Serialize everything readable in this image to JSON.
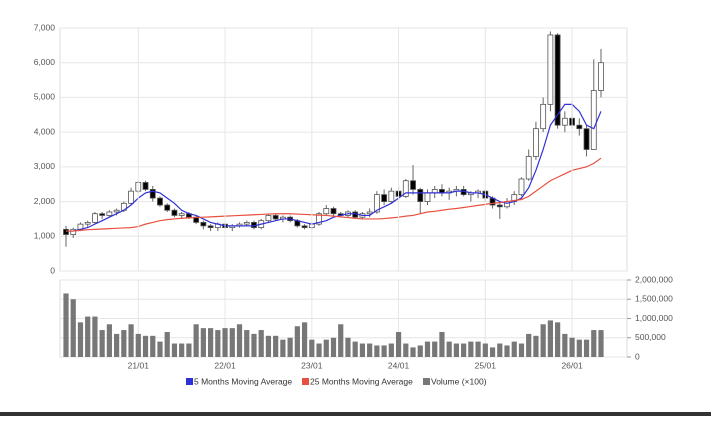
{
  "chart_data": [
    {
      "type": "candlestick",
      "open": [
        1200,
        1050,
        1200,
        1350,
        1400,
        1650,
        1600,
        1700,
        1750,
        1950,
        2300,
        2550,
        2350,
        2100,
        1900,
        1750,
        1600,
        1650,
        1550,
        1400,
        1300,
        1250,
        1350,
        1250,
        1300,
        1350,
        1400,
        1250,
        1450,
        1600,
        1500,
        1550,
        1450,
        1300,
        1250,
        1350,
        1650,
        1800,
        1650,
        1600,
        1700,
        1550,
        1650,
        1700,
        2200,
        2000,
        2300,
        2150,
        2600,
        2350,
        2000,
        2250,
        2350,
        2250,
        2300,
        2350,
        2200,
        2250,
        2300,
        2100,
        1900,
        1850,
        2000,
        2200,
        2650,
        3300,
        4100,
        4800,
        6800,
        4200,
        4400,
        4200,
        4100,
        3500,
        5200
      ],
      "high": [
        1300,
        1250,
        1400,
        1450,
        1700,
        1700,
        1750,
        1800,
        2000,
        2400,
        2600,
        2600,
        2450,
        2150,
        1950,
        1800,
        1700,
        1700,
        1600,
        1450,
        1350,
        1400,
        1400,
        1350,
        1400,
        1450,
        1450,
        1500,
        1650,
        1650,
        1600,
        1600,
        1500,
        1350,
        1400,
        1700,
        1900,
        1850,
        1700,
        1750,
        1750,
        1700,
        1800,
        2300,
        2350,
        2400,
        2450,
        2650,
        3050,
        2400,
        2350,
        2450,
        2500,
        2400,
        2450,
        2450,
        2300,
        2350,
        2350,
        2150,
        2000,
        2100,
        2300,
        2700,
        3500,
        4300,
        5000,
        6900,
        6850,
        4600,
        4900,
        4400,
        4200,
        6100,
        6400
      ],
      "low": [
        700,
        950,
        1150,
        1250,
        1350,
        1500,
        1550,
        1600,
        1700,
        1900,
        2250,
        2300,
        2000,
        1850,
        1700,
        1550,
        1500,
        1500,
        1350,
        1200,
        1150,
        1150,
        1200,
        1150,
        1250,
        1300,
        1200,
        1200,
        1400,
        1450,
        1400,
        1400,
        1250,
        1200,
        1200,
        1300,
        1600,
        1600,
        1550,
        1550,
        1500,
        1500,
        1550,
        1650,
        1900,
        1950,
        2050,
        2100,
        2200,
        1650,
        1900,
        2100,
        2150,
        2050,
        2150,
        2150,
        2000,
        2100,
        2000,
        1800,
        1500,
        1800,
        1900,
        2150,
        2600,
        3200,
        4000,
        4600,
        4100,
        4000,
        4100,
        3900,
        3300,
        3500,
        5000
      ],
      "close": [
        1050,
        1200,
        1350,
        1400,
        1650,
        1600,
        1700,
        1750,
        1950,
        2300,
        2550,
        2350,
        2100,
        1900,
        1750,
        1600,
        1650,
        1550,
        1400,
        1300,
        1250,
        1350,
        1250,
        1300,
        1350,
        1400,
        1250,
        1450,
        1600,
        1500,
        1550,
        1450,
        1300,
        1250,
        1350,
        1650,
        1800,
        1650,
        1600,
        1700,
        1550,
        1650,
        1700,
        2200,
        2000,
        2300,
        2150,
        2600,
        2350,
        2000,
        2250,
        2350,
        2250,
        2300,
        2350,
        2200,
        2250,
        2300,
        2100,
        1900,
        1850,
        2000,
        2200,
        2650,
        3300,
        4100,
        4800,
        6800,
        4200,
        4400,
        4200,
        4100,
        3500,
        5200,
        6000
      ],
      "up_color": "#ffffff",
      "down_color": "#000000",
      "series": [
        {
          "name": "5 Months Moving Average",
          "color": "#3030d8",
          "values": [
            1150,
            1150,
            1200,
            1250,
            1350,
            1450,
            1550,
            1650,
            1750,
            1900,
            2100,
            2250,
            2300,
            2250,
            2100,
            1950,
            1750,
            1650,
            1600,
            1500,
            1400,
            1350,
            1300,
            1300,
            1300,
            1300,
            1300,
            1350,
            1400,
            1450,
            1500,
            1500,
            1450,
            1400,
            1350,
            1400,
            1450,
            1550,
            1600,
            1650,
            1650,
            1600,
            1600,
            1750,
            1850,
            1950,
            2100,
            2250,
            2250,
            2250,
            2250,
            2250,
            2250,
            2250,
            2300,
            2300,
            2250,
            2250,
            2200,
            2100,
            2000,
            1950,
            2000,
            2100,
            2400,
            2900,
            3500,
            4200,
            4500,
            4800,
            4800,
            4600,
            4200,
            4100,
            4600
          ]
        },
        {
          "name": "25 Months Moving Average",
          "color": "#e8503f",
          "values": [
            1150,
            1150,
            1170,
            1190,
            1200,
            1210,
            1220,
            1230,
            1240,
            1250,
            1280,
            1350,
            1400,
            1450,
            1480,
            1500,
            1520,
            1530,
            1540,
            1550,
            1560,
            1570,
            1580,
            1590,
            1600,
            1610,
            1620,
            1630,
            1640,
            1650,
            1650,
            1650,
            1640,
            1630,
            1620,
            1610,
            1600,
            1580,
            1560,
            1540,
            1520,
            1500,
            1500,
            1500,
            1510,
            1530,
            1550,
            1580,
            1600,
            1650,
            1700,
            1720,
            1750,
            1780,
            1800,
            1830,
            1860,
            1890,
            1920,
            1950,
            1970,
            2000,
            2030,
            2060,
            2150,
            2300,
            2450,
            2600,
            2700,
            2800,
            2900,
            2950,
            3000,
            3100,
            3250
          ]
        }
      ],
      "ylim": [
        0,
        7000
      ],
      "yticks": [
        0,
        {
          "value": 1000,
          "label": "1,000"
        },
        {
          "value": 2000,
          "label": "2,000"
        },
        {
          "value": 3000,
          "label": "3,000"
        },
        {
          "value": 4000,
          "label": "4,000"
        },
        {
          "value": 5000,
          "label": "5,000"
        },
        {
          "value": 6000,
          "label": "6,000"
        },
        {
          "value": 7000,
          "label": "7,000"
        }
      ],
      "grid": true
    },
    {
      "type": "bar",
      "categories": [
        null,
        null,
        null,
        null,
        null,
        null,
        null,
        null,
        null,
        null,
        "21/01",
        null,
        null,
        null,
        null,
        null,
        null,
        null,
        null,
        null,
        null,
        null,
        "22/01",
        null,
        null,
        null,
        null,
        null,
        null,
        null,
        null,
        null,
        null,
        null,
        "23/01",
        null,
        null,
        null,
        null,
        null,
        null,
        null,
        null,
        null,
        null,
        null,
        "24/01",
        null,
        null,
        null,
        null,
        null,
        null,
        null,
        null,
        null,
        null,
        null,
        "25/01",
        null,
        null,
        null,
        null,
        null,
        null,
        null,
        null,
        null,
        null,
        null,
        "26/01",
        null,
        null,
        null,
        null
      ],
      "series": [
        {
          "name": "Volume (×100)",
          "color": "#777777",
          "values": [
            1650000,
            1500000,
            900000,
            1050000,
            1050000,
            700000,
            850000,
            600000,
            700000,
            850000,
            600000,
            550000,
            550000,
            400000,
            650000,
            350000,
            350000,
            350000,
            850000,
            750000,
            750000,
            700000,
            750000,
            750000,
            850000,
            700000,
            600000,
            700000,
            550000,
            550000,
            450000,
            500000,
            800000,
            900000,
            450000,
            350000,
            450000,
            500000,
            850000,
            500000,
            400000,
            350000,
            350000,
            300000,
            300000,
            350000,
            650000,
            350000,
            250000,
            300000,
            400000,
            400000,
            650000,
            400000,
            350000,
            350000,
            400000,
            400000,
            350000,
            250000,
            350000,
            300000,
            400000,
            350000,
            600000,
            550000,
            850000,
            950000,
            900000,
            600000,
            500000,
            450000,
            450000,
            700000,
            700000
          ]
        }
      ],
      "ylim": [
        0,
        2000000
      ],
      "yticks": [
        0,
        {
          "value": 500000,
          "label": "500,000"
        },
        {
          "value": 1000000,
          "label": "1,000,000"
        },
        {
          "value": 1500000,
          "label": "1,500,000"
        },
        {
          "value": 2000000,
          "label": "2,000,000"
        }
      ],
      "grid": true
    }
  ]
}
